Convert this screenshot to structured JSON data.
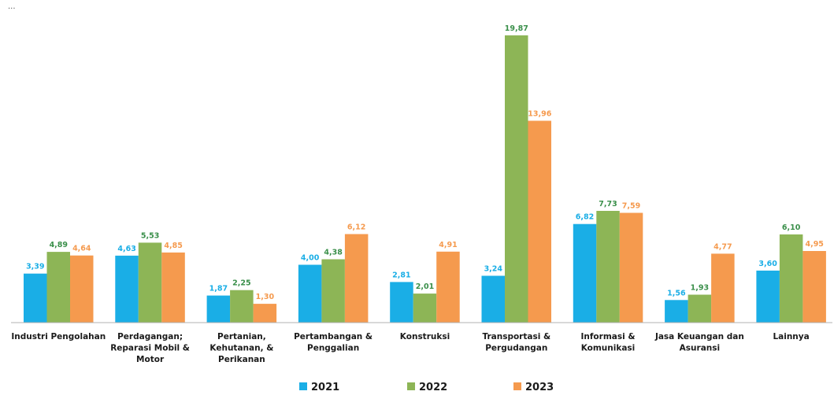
{
  "header_note": "...",
  "chart_data": {
    "type": "bar",
    "categories": [
      [
        "Industri Pengolahan"
      ],
      [
        "Perdagangan;",
        "Reparasi Mobil &",
        "Motor"
      ],
      [
        "Pertanian,",
        "Kehutanan, &",
        "Perikanan"
      ],
      [
        "Pertambangan &",
        "Penggalian"
      ],
      [
        "Konstruksi"
      ],
      [
        "Transportasi &",
        "Pergudangan"
      ],
      [
        "Informasi &",
        "Komunikasi"
      ],
      [
        "Jasa Keuangan dan",
        "Asuransi"
      ],
      [
        "Lainnya"
      ]
    ],
    "series": [
      {
        "name": "2021",
        "color": "#1aaee6",
        "values": [
          3.39,
          4.63,
          1.87,
          4.0,
          2.81,
          3.24,
          6.82,
          1.56,
          3.6
        ],
        "labels": [
          "3,39",
          "4,63",
          "1,87",
          "4,00",
          "2,81",
          "3,24",
          "6,82",
          "1,56",
          "3,60"
        ]
      },
      {
        "name": "2022",
        "color": "#8db556",
        "label_color": "#3a8f4a",
        "values": [
          4.89,
          5.53,
          2.25,
          4.38,
          2.01,
          19.87,
          7.73,
          1.93,
          6.1
        ],
        "labels": [
          "4,89",
          "5,53",
          "2,25",
          "4,38",
          "2,01",
          "19,87",
          "7,73",
          "1,93",
          "6,10"
        ]
      },
      {
        "name": "2023",
        "color": "#f59a4e",
        "values": [
          4.64,
          4.85,
          1.3,
          6.12,
          4.91,
          13.96,
          7.59,
          4.77,
          4.95
        ],
        "labels": [
          "4,64",
          "4,85",
          "1,30",
          "6,12",
          "4,91",
          "13,96",
          "7,59",
          "4,77",
          "4,95"
        ]
      }
    ],
    "ylim": [
      0,
      20.3
    ],
    "grid": false,
    "legend_position": "bottom",
    "title": "",
    "xlabel": "",
    "ylabel": ""
  }
}
